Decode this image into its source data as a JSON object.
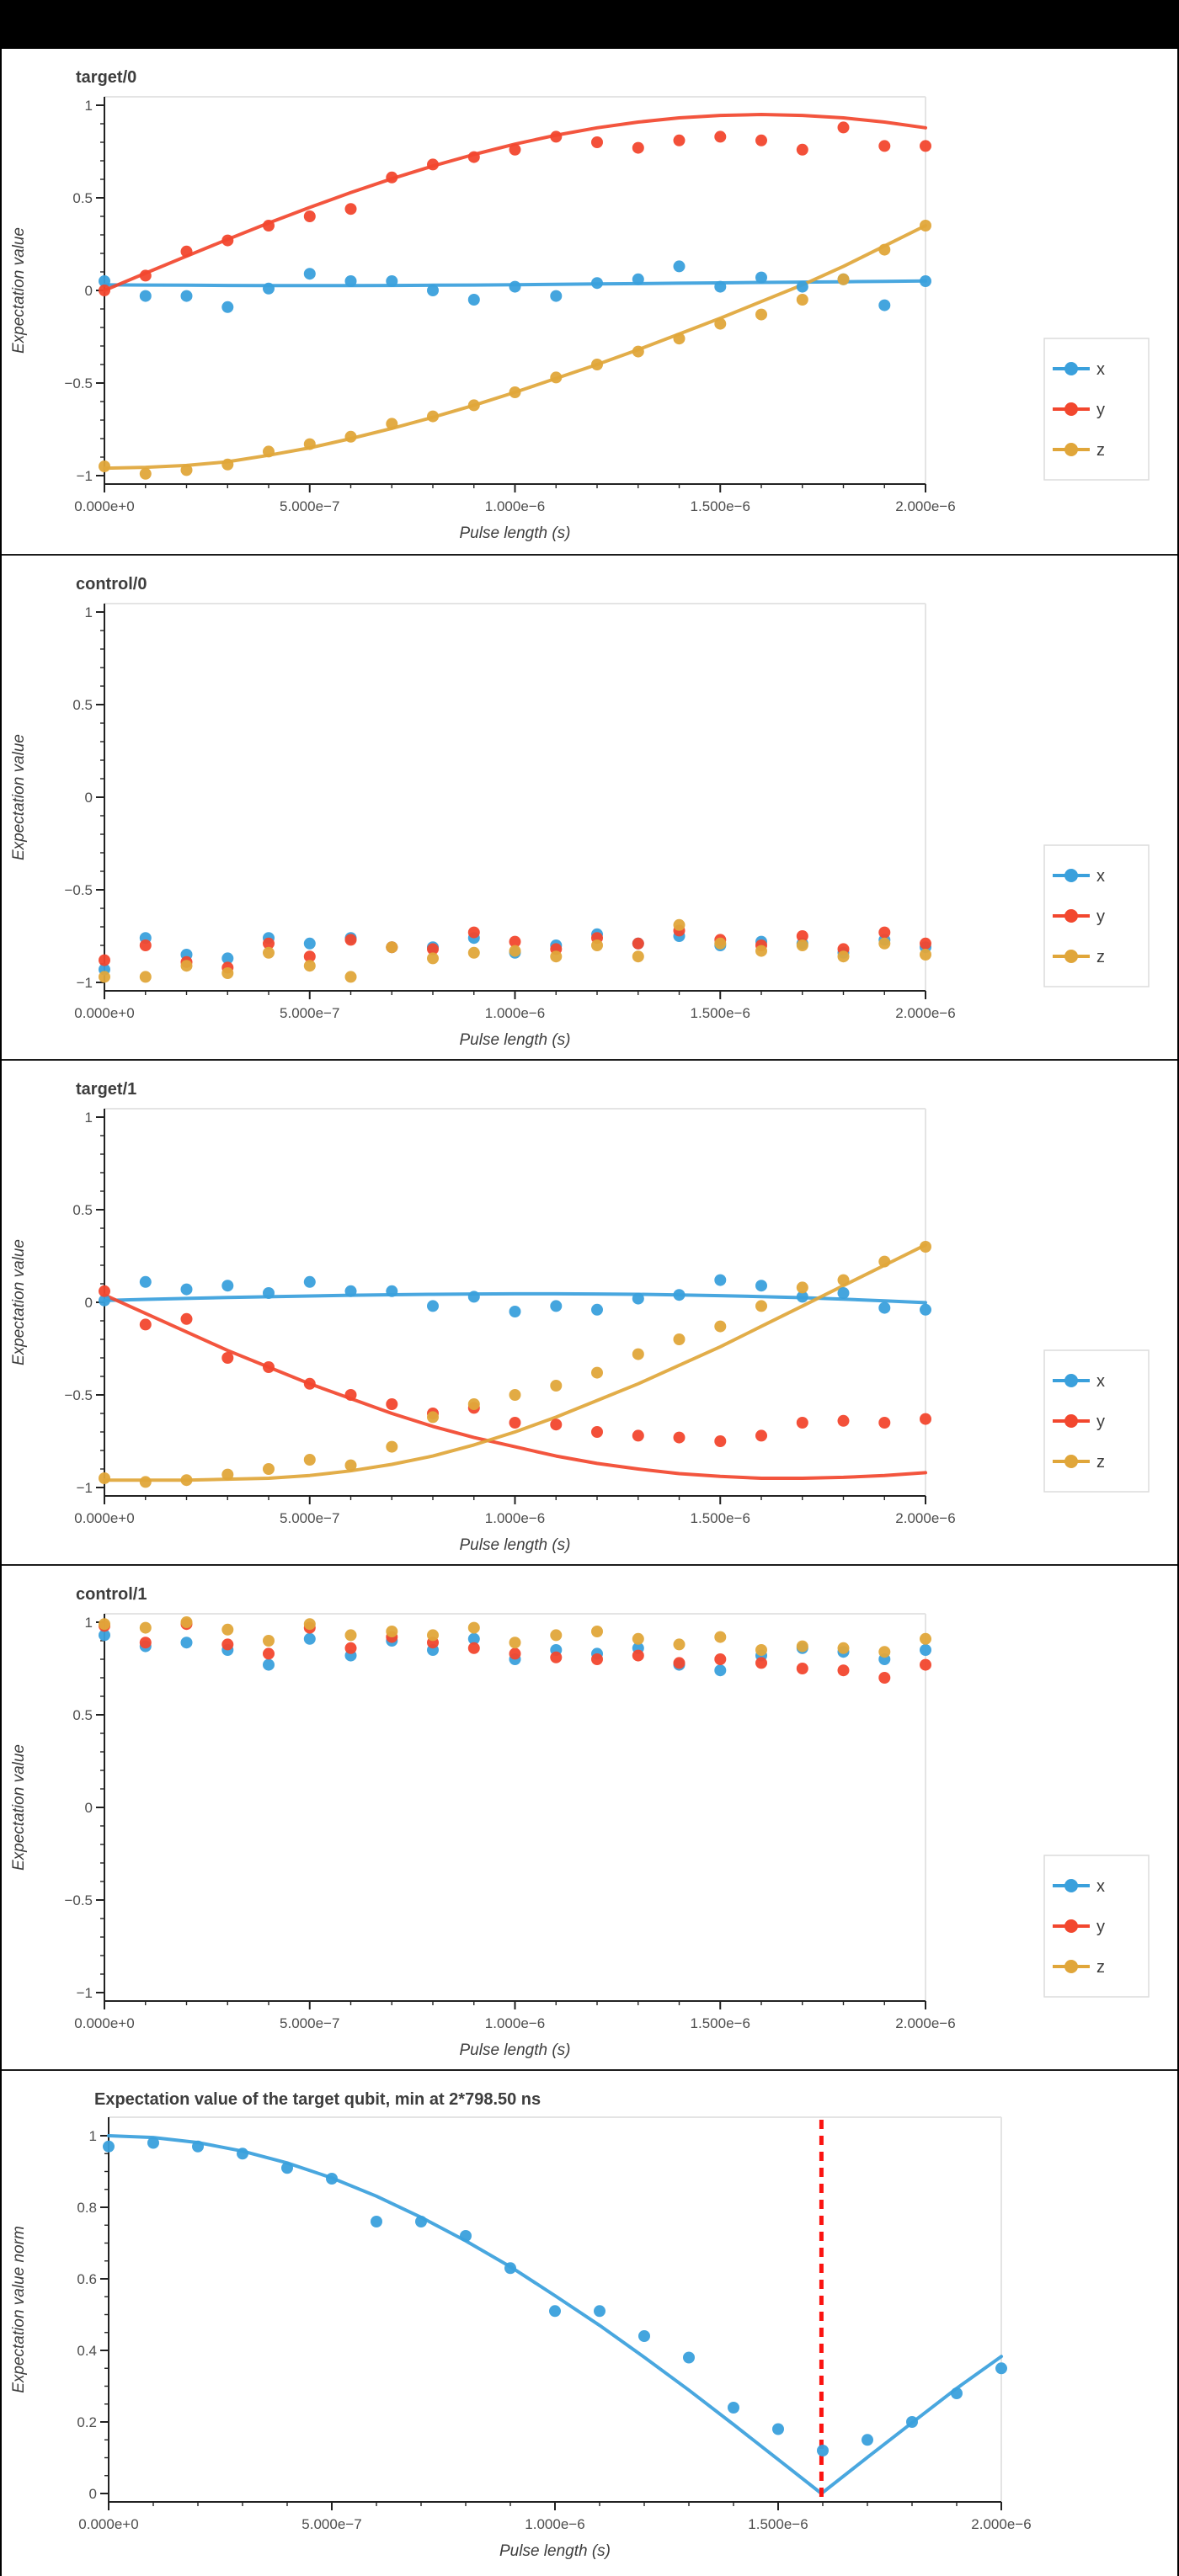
{
  "page": {
    "top_bar": true,
    "background": "#ffffff",
    "frame_color": "#000000"
  },
  "colors": {
    "blue": "#3AA0DC",
    "red": "#F2472E",
    "gold": "#E0A63A",
    "vline": "#FB1310",
    "title_text": "#3d3d3d",
    "tick_text": "#4d4d4d",
    "spine": "#222222",
    "light_spine": "#e4e4e4",
    "legend_border": "#dcdcdc"
  },
  "chart_data": [
    {
      "type": "scatter+line",
      "title": "target/0",
      "xlabel": "Pulse length (s)",
      "ylabel": "Expectation value",
      "x_unit_us": true,
      "x": [
        0.0,
        0.1,
        0.2,
        0.3,
        0.4,
        0.5,
        0.6,
        0.7,
        0.8,
        0.9,
        1.0,
        1.1,
        1.2,
        1.3,
        1.4,
        1.5,
        1.6,
        1.7,
        1.8,
        1.9,
        2.0
      ],
      "x_tick_values": [
        0,
        0.5,
        1.0,
        1.5,
        2.0
      ],
      "x_tick_labels": [
        "0.000e+0",
        "5.000e−7",
        "1.000e−6",
        "1.500e−6",
        "2.000e−6"
      ],
      "y_tick_values": [
        -1,
        -0.5,
        0,
        0.5,
        1
      ],
      "y_tick_labels": [
        "−1",
        "−0.5",
        "0",
        "0.5",
        "1"
      ],
      "ylim": [
        -1.05,
        1.05
      ],
      "legend": [
        "x",
        "y",
        "z"
      ],
      "series": [
        {
          "name": "x",
          "color": "blue",
          "points": [
            0.05,
            -0.03,
            -0.03,
            -0.09,
            0.01,
            0.09,
            0.05,
            0.05,
            0.0,
            -0.05,
            0.02,
            -0.03,
            0.04,
            0.06,
            0.13,
            0.02,
            0.07,
            0.02,
            0.06,
            -0.08,
            0.05
          ],
          "line": [
            0.03,
            0.029,
            0.028,
            0.027,
            0.026,
            0.026,
            0.026,
            0.027,
            0.028,
            0.029,
            0.031,
            0.033,
            0.035,
            0.037,
            0.039,
            0.041,
            0.043,
            0.045,
            0.047,
            0.049,
            0.051
          ]
        },
        {
          "name": "y",
          "color": "red",
          "points": [
            0.0,
            0.08,
            0.21,
            0.27,
            0.35,
            0.4,
            0.44,
            0.61,
            0.68,
            0.72,
            0.76,
            0.83,
            0.8,
            0.77,
            0.81,
            0.83,
            0.81,
            0.76,
            0.88,
            0.78,
            0.78
          ],
          "line": [
            0.0,
            0.093,
            0.185,
            0.276,
            0.364,
            0.448,
            0.528,
            0.603,
            0.672,
            0.734,
            0.79,
            0.838,
            0.878,
            0.909,
            0.932,
            0.945,
            0.95,
            0.945,
            0.932,
            0.909,
            0.878
          ]
        },
        {
          "name": "z",
          "color": "gold",
          "points": [
            -0.95,
            -0.99,
            -0.97,
            -0.94,
            -0.87,
            -0.83,
            -0.79,
            -0.72,
            -0.68,
            -0.62,
            -0.55,
            -0.47,
            -0.4,
            -0.33,
            -0.26,
            -0.18,
            -0.13,
            -0.05,
            0.06,
            0.22,
            0.35
          ],
          "line": [
            -0.96,
            -0.955,
            -0.945,
            -0.925,
            -0.89,
            -0.85,
            -0.8,
            -0.745,
            -0.685,
            -0.62,
            -0.55,
            -0.475,
            -0.4,
            -0.32,
            -0.235,
            -0.15,
            -0.06,
            0.03,
            0.13,
            0.24,
            0.35
          ]
        }
      ]
    },
    {
      "type": "scatter",
      "title": "control/0",
      "xlabel": "Pulse length (s)",
      "ylabel": "Expectation value",
      "x": [
        0.0,
        0.1,
        0.2,
        0.3,
        0.4,
        0.5,
        0.6,
        0.7,
        0.8,
        0.9,
        1.0,
        1.1,
        1.2,
        1.3,
        1.4,
        1.5,
        1.6,
        1.7,
        1.8,
        1.9,
        2.0
      ],
      "x_tick_values": [
        0,
        0.5,
        1.0,
        1.5,
        2.0
      ],
      "x_tick_labels": [
        "0.000e+0",
        "5.000e−7",
        "1.000e−6",
        "1.500e−6",
        "2.000e−6"
      ],
      "y_tick_values": [
        -1,
        -0.5,
        0,
        0.5,
        1
      ],
      "y_tick_labels": [
        "−1",
        "−0.5",
        "0",
        "0.5",
        "1"
      ],
      "ylim": [
        -1.05,
        1.05
      ],
      "legend": [
        "x",
        "y",
        "z"
      ],
      "series": [
        {
          "name": "x",
          "color": "blue",
          "points": [
            -0.93,
            -0.76,
            -0.85,
            -0.87,
            -0.76,
            -0.79,
            -0.76,
            -0.81,
            -0.81,
            -0.76,
            -0.84,
            -0.8,
            -0.74,
            -0.79,
            -0.75,
            -0.8,
            -0.78,
            -0.79,
            -0.84,
            -0.77,
            -0.81
          ],
          "line": null
        },
        {
          "name": "y",
          "color": "red",
          "points": [
            -0.88,
            -0.8,
            -0.89,
            -0.92,
            -0.79,
            -0.86,
            -0.77,
            -0.81,
            -0.82,
            -0.73,
            -0.78,
            -0.82,
            -0.76,
            -0.79,
            -0.72,
            -0.77,
            -0.8,
            -0.75,
            -0.82,
            -0.73,
            -0.79
          ],
          "line": null
        },
        {
          "name": "z",
          "color": "gold",
          "points": [
            -0.97,
            -0.97,
            -0.91,
            -0.95,
            -0.84,
            -0.91,
            -0.97,
            -0.81,
            -0.87,
            -0.84,
            -0.83,
            -0.86,
            -0.8,
            -0.86,
            -0.69,
            -0.79,
            -0.83,
            -0.8,
            -0.86,
            -0.79,
            -0.85
          ],
          "line": null
        }
      ]
    },
    {
      "type": "scatter+line",
      "title": "target/1",
      "xlabel": "Pulse length (s)",
      "ylabel": "Expectation value",
      "x": [
        0.0,
        0.1,
        0.2,
        0.3,
        0.4,
        0.5,
        0.6,
        0.7,
        0.8,
        0.9,
        1.0,
        1.1,
        1.2,
        1.3,
        1.4,
        1.5,
        1.6,
        1.7,
        1.8,
        1.9,
        2.0
      ],
      "x_tick_values": [
        0,
        0.5,
        1.0,
        1.5,
        2.0
      ],
      "x_tick_labels": [
        "0.000e+0",
        "5.000e−7",
        "1.000e−6",
        "1.500e−6",
        "2.000e−6"
      ],
      "y_tick_values": [
        -1,
        -0.5,
        0,
        0.5,
        1
      ],
      "y_tick_labels": [
        "−1",
        "−0.5",
        "0",
        "0.5",
        "1"
      ],
      "ylim": [
        -1.05,
        1.05
      ],
      "legend": [
        "x",
        "y",
        "z"
      ],
      "series": [
        {
          "name": "x",
          "color": "blue",
          "points": [
            0.01,
            0.11,
            0.07,
            0.09,
            0.05,
            0.11,
            0.06,
            0.06,
            -0.02,
            0.03,
            -0.05,
            -0.02,
            -0.04,
            0.02,
            0.04,
            0.12,
            0.09,
            0.03,
            0.05,
            -0.03,
            -0.04
          ],
          "line": [
            0.01,
            0.016,
            0.021,
            0.026,
            0.03,
            0.034,
            0.038,
            0.041,
            0.043,
            0.045,
            0.046,
            0.046,
            0.045,
            0.043,
            0.04,
            0.036,
            0.031,
            0.025,
            0.017,
            0.008,
            -0.002
          ]
        },
        {
          "name": "y",
          "color": "red",
          "points": [
            0.06,
            -0.12,
            -0.09,
            -0.3,
            -0.35,
            -0.44,
            -0.5,
            -0.55,
            -0.6,
            -0.57,
            -0.65,
            -0.66,
            -0.7,
            -0.72,
            -0.73,
            -0.75,
            -0.72,
            -0.65,
            -0.64,
            -0.65,
            -0.63
          ],
          "line": [
            0.04,
            -0.06,
            -0.16,
            -0.26,
            -0.35,
            -0.44,
            -0.52,
            -0.6,
            -0.67,
            -0.73,
            -0.78,
            -0.83,
            -0.87,
            -0.9,
            -0.925,
            -0.94,
            -0.95,
            -0.95,
            -0.945,
            -0.935,
            -0.92
          ]
        },
        {
          "name": "z",
          "color": "gold",
          "points": [
            -0.95,
            -0.97,
            -0.96,
            -0.93,
            -0.9,
            -0.85,
            -0.88,
            -0.78,
            -0.62,
            -0.55,
            -0.5,
            -0.45,
            -0.38,
            -0.28,
            -0.2,
            -0.13,
            -0.02,
            0.08,
            0.12,
            0.22,
            0.3
          ],
          "line": [
            -0.96,
            -0.96,
            -0.96,
            -0.955,
            -0.95,
            -0.935,
            -0.91,
            -0.875,
            -0.83,
            -0.77,
            -0.7,
            -0.62,
            -0.53,
            -0.44,
            -0.34,
            -0.24,
            -0.13,
            -0.02,
            0.09,
            0.2,
            0.31
          ]
        }
      ]
    },
    {
      "type": "scatter",
      "title": "control/1",
      "xlabel": "Pulse length (s)",
      "ylabel": "Expectation value",
      "x": [
        0.0,
        0.1,
        0.2,
        0.3,
        0.4,
        0.5,
        0.6,
        0.7,
        0.8,
        0.9,
        1.0,
        1.1,
        1.2,
        1.3,
        1.4,
        1.5,
        1.6,
        1.7,
        1.8,
        1.9,
        2.0
      ],
      "x_tick_values": [
        0,
        0.5,
        1.0,
        1.5,
        2.0
      ],
      "x_tick_labels": [
        "0.000e+0",
        "5.000e−7",
        "1.000e−6",
        "1.500e−6",
        "2.000e−6"
      ],
      "y_tick_values": [
        -1,
        -0.5,
        0,
        0.5,
        1
      ],
      "y_tick_labels": [
        "−1",
        "−0.5",
        "0",
        "0.5",
        "1"
      ],
      "ylim": [
        -1.05,
        1.05
      ],
      "legend": [
        "x",
        "y",
        "z"
      ],
      "series": [
        {
          "name": "x",
          "color": "blue",
          "points": [
            0.93,
            0.87,
            0.89,
            0.85,
            0.77,
            0.91,
            0.82,
            0.9,
            0.85,
            0.91,
            0.8,
            0.85,
            0.83,
            0.86,
            0.77,
            0.74,
            0.82,
            0.86,
            0.84,
            0.8,
            0.85
          ],
          "line": null
        },
        {
          "name": "y",
          "color": "red",
          "points": [
            0.98,
            0.89,
            0.99,
            0.88,
            0.83,
            0.97,
            0.86,
            0.92,
            0.89,
            0.86,
            0.83,
            0.81,
            0.8,
            0.82,
            0.78,
            0.8,
            0.78,
            0.75,
            0.74,
            0.7,
            0.77
          ],
          "line": null
        },
        {
          "name": "z",
          "color": "gold",
          "points": [
            0.99,
            0.97,
            1.0,
            0.96,
            0.9,
            0.99,
            0.93,
            0.95,
            0.93,
            0.97,
            0.89,
            0.93,
            0.95,
            0.91,
            0.88,
            0.92,
            0.85,
            0.87,
            0.86,
            0.84,
            0.91
          ],
          "line": null
        }
      ]
    },
    {
      "type": "scatter+line",
      "title": "Expectation value of the target qubit, min at 2*798.50 ns",
      "xlabel": "Pulse length (s)",
      "ylabel": "Expectation value norm",
      "x": [
        0.0,
        0.1,
        0.2,
        0.3,
        0.4,
        0.5,
        0.6,
        0.7,
        0.8,
        0.9,
        1.0,
        1.1,
        1.2,
        1.3,
        1.4,
        1.5,
        1.6,
        1.7,
        1.8,
        1.9,
        2.0
      ],
      "x_tick_values": [
        0,
        0.5,
        1.0,
        1.5,
        2.0
      ],
      "x_tick_labels": [
        "0.000e+0",
        "5.000e−7",
        "1.000e−6",
        "1.500e−6",
        "2.000e−6"
      ],
      "y_tick_values": [
        0,
        0.2,
        0.4,
        0.6,
        0.8,
        1
      ],
      "y_tick_labels": [
        "0",
        "0.2",
        "0.4",
        "0.6",
        "0.8",
        "1"
      ],
      "ylim": [
        -0.02,
        1.05
      ],
      "legend": null,
      "vline": {
        "x_us": 1.597,
        "label_ns": "2*798.50 ns",
        "style": "dashed"
      },
      "series": [
        {
          "name": "norm",
          "color": "blue",
          "points": [
            0.97,
            0.98,
            0.97,
            0.95,
            0.91,
            0.88,
            0.76,
            0.76,
            0.72,
            0.63,
            0.51,
            0.51,
            0.44,
            0.38,
            0.24,
            0.18,
            0.12,
            0.15,
            0.2,
            0.28,
            0.35
          ],
          "line_xy": {
            "x": [
              0.0,
              0.1,
              0.2,
              0.3,
              0.4,
              0.5,
              0.6,
              0.7,
              0.8,
              0.9,
              1.0,
              1.1,
              1.2,
              1.3,
              1.4,
              1.5,
              1.597,
              1.7,
              1.8,
              1.9,
              2.0
            ],
            "y": [
              1.0,
              0.995,
              0.981,
              0.957,
              0.924,
              0.882,
              0.831,
              0.772,
              0.706,
              0.634,
              0.553,
              0.47,
              0.381,
              0.289,
              0.193,
              0.095,
              0.0,
              0.101,
              0.198,
              0.294,
              0.383
            ]
          }
        }
      ]
    }
  ]
}
